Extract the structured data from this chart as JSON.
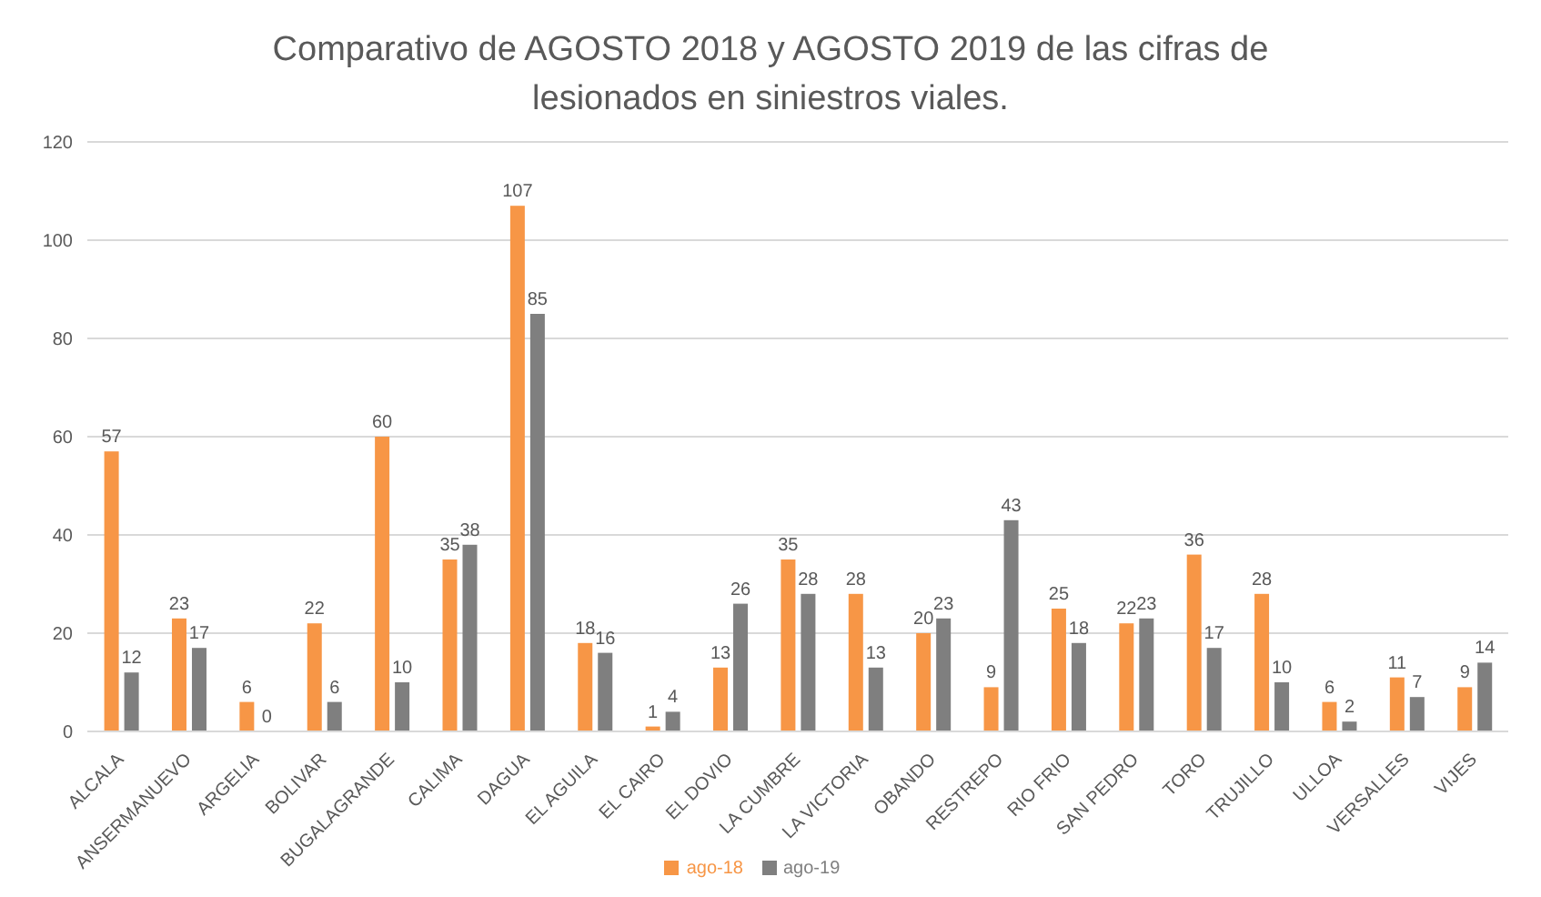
{
  "chart_data": {
    "type": "bar",
    "title": "Comparativo de AGOSTO 2018 y AGOSTO 2019 de las cifras de lesionados en siniestros viales.",
    "categories": [
      "ALCALA",
      "ANSERMANUEVO",
      "ARGELIA",
      "BOLIVAR",
      "BUGALAGRANDE",
      "CALIMA",
      "DAGUA",
      "EL AGUILA",
      "EL CAIRO",
      "EL DOVIO",
      "LA CUMBRE",
      "LA VICTORIA",
      "OBANDO",
      "RESTREPO",
      "RIO FRIO",
      "SAN PEDRO",
      "TORO",
      "TRUJILLO",
      "ULLOA",
      "VERSALLES",
      "VIJES"
    ],
    "series": [
      {
        "name": "ago-18",
        "color": "#f79646",
        "values": [
          57,
          23,
          6,
          22,
          60,
          35,
          107,
          18,
          1,
          13,
          35,
          28,
          20,
          9,
          25,
          22,
          36,
          28,
          6,
          11,
          9
        ]
      },
      {
        "name": "ago-19",
        "color": "#7f7f7f",
        "values": [
          12,
          17,
          0,
          6,
          10,
          38,
          85,
          16,
          4,
          26,
          28,
          13,
          23,
          43,
          18,
          23,
          17,
          10,
          2,
          7,
          14
        ]
      }
    ],
    "ylim": [
      0,
      120
    ],
    "yticks": [
      0,
      20,
      40,
      60,
      80,
      100,
      120
    ],
    "grid": "y",
    "legend": "bottom",
    "data_labels": true
  }
}
